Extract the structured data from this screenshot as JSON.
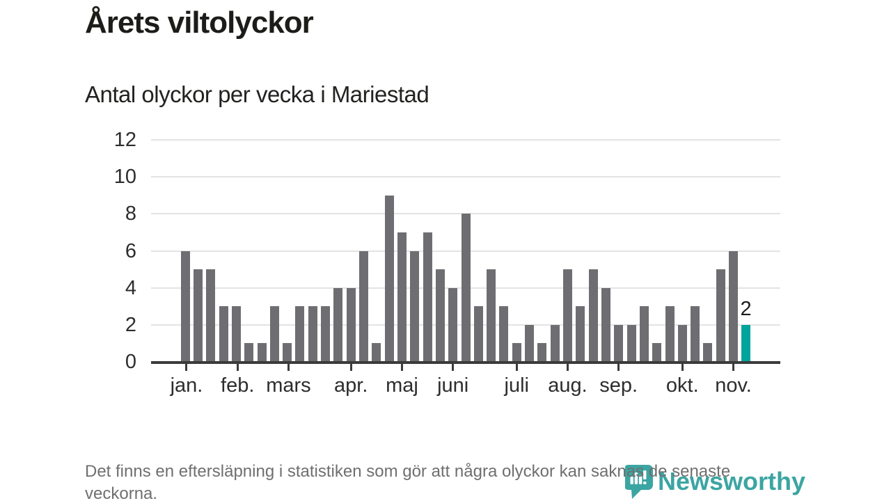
{
  "title": "Årets viltolyckor",
  "subtitle": "Antal olyckor per vecka i Mariestad",
  "footer_note": "Det finns en eftersläpning i statistiken som gör att några olyckor kan saknas de senaste veckorna.",
  "logo": {
    "wordmark": "Newsworthy",
    "icon": "newsworthy-pin-bar-chart-icon",
    "color": "#3ba5a2"
  },
  "colors": {
    "bar": "#6e6e72",
    "highlight": "#00a49c",
    "gridline": "#e3e3e3",
    "axis": "#3b3b3b",
    "axis_text": "#2d2d2d",
    "title_text": "#1c1c19",
    "muted_text": "#6f6f6f"
  },
  "chart_data": {
    "type": "bar",
    "title": "Årets viltolyckor",
    "subtitle": "Antal olyckor per vecka i Mariestad",
    "x_unit": "vecka (week of the year, jan–nov)",
    "values": [
      6,
      5,
      5,
      3,
      3,
      1,
      1,
      3,
      1,
      3,
      3,
      3,
      4,
      4,
      6,
      1,
      9,
      7,
      6,
      7,
      5,
      4,
      8,
      3,
      5,
      3,
      1,
      2,
      1,
      2,
      5,
      3,
      5,
      4,
      2,
      2,
      3,
      1,
      3,
      2,
      3,
      1,
      5,
      6,
      2
    ],
    "highlighted_index": 44,
    "highlighted_value_label": "2",
    "ylim": [
      0,
      12
    ],
    "yticks": [
      0,
      2,
      4,
      6,
      8,
      10,
      12
    ],
    "grid": "horizontal",
    "legend": "none",
    "month_ticks": [
      {
        "label": "jan.",
        "week_position": 0.6
      },
      {
        "label": "feb.",
        "week_position": 4.6
      },
      {
        "label": "mars",
        "week_position": 8.6
      },
      {
        "label": "apr.",
        "week_position": 13.5
      },
      {
        "label": "maj",
        "week_position": 17.5
      },
      {
        "label": "juni",
        "week_position": 21.5
      },
      {
        "label": "juli",
        "week_position": 26.5
      },
      {
        "label": "aug.",
        "week_position": 30.5
      },
      {
        "label": "sep.",
        "week_position": 34.5
      },
      {
        "label": "okt.",
        "week_position": 39.5
      },
      {
        "label": "nov.",
        "week_position": 43.5
      }
    ]
  }
}
